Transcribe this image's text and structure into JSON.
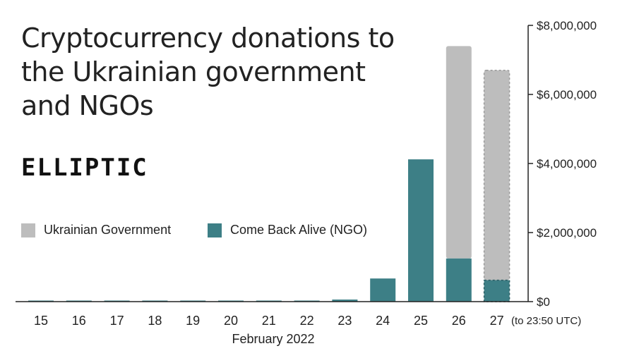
{
  "chart_data": {
    "type": "bar",
    "stacked": true,
    "title": "Cryptocurrency donations to the Ukrainian government and NGOs",
    "brand": "ELLIPTIC",
    "xlabel": "February 2022",
    "categories": [
      "15",
      "16",
      "17",
      "18",
      "19",
      "20",
      "21",
      "22",
      "23",
      "24",
      "25",
      "26",
      "27"
    ],
    "last_category_note": "(to 23:50 UTC)",
    "series": [
      {
        "name": "Come Back Alive (NGO)",
        "color": "#3d7f86",
        "values": [
          5000,
          5000,
          5000,
          5000,
          5000,
          5000,
          5000,
          5000,
          60000,
          670000,
          4120000,
          1250000,
          620000
        ]
      },
      {
        "name": "Ukrainian Government",
        "color": "#bdbdbd",
        "values": [
          0,
          0,
          0,
          0,
          0,
          0,
          0,
          0,
          0,
          0,
          0,
          6150000,
          6080000
        ]
      }
    ],
    "partial_last_bar": true,
    "ylim": [
      0,
      8000000
    ],
    "yticks": [
      0,
      2000000,
      4000000,
      6000000,
      8000000
    ],
    "ytick_labels": [
      "$0",
      "$2,000,000",
      "$4,000,000",
      "$6,000,000",
      "$8,000,000"
    ],
    "y_axis_side": "right",
    "grid": false,
    "legend_position": "middle-left"
  }
}
